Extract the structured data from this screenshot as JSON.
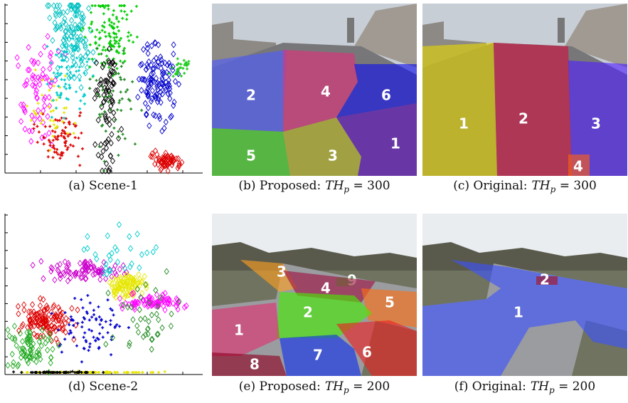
{
  "panels": [
    {
      "caption": {
        "text": "(a) Scene-1"
      }
    },
    {
      "caption": {
        "text": "(b) Proposed:",
        "math": "TH",
        "sub": "p",
        "eq": " = 300"
      },
      "regions": [
        "2",
        "4",
        "6",
        "5",
        "3",
        "1"
      ]
    },
    {
      "caption": {
        "text": "(c) Original:",
        "math": "TH",
        "sub": "p",
        "eq": " = 300"
      },
      "regions": [
        "1",
        "2",
        "3",
        "4"
      ]
    },
    {
      "caption": {
        "text": "(d) Scene-2"
      }
    },
    {
      "caption": {
        "text": "(e) Proposed:",
        "math": "TH",
        "sub": "p",
        "eq": " = 200"
      },
      "regions": [
        "3",
        "9",
        "4",
        "5",
        "2",
        "1",
        "6",
        "7",
        "8"
      ]
    },
    {
      "caption": {
        "text": "(f) Original:",
        "math": "TH",
        "sub": "p",
        "eq": " = 200"
      },
      "regions": [
        "1",
        "2"
      ]
    }
  ]
}
